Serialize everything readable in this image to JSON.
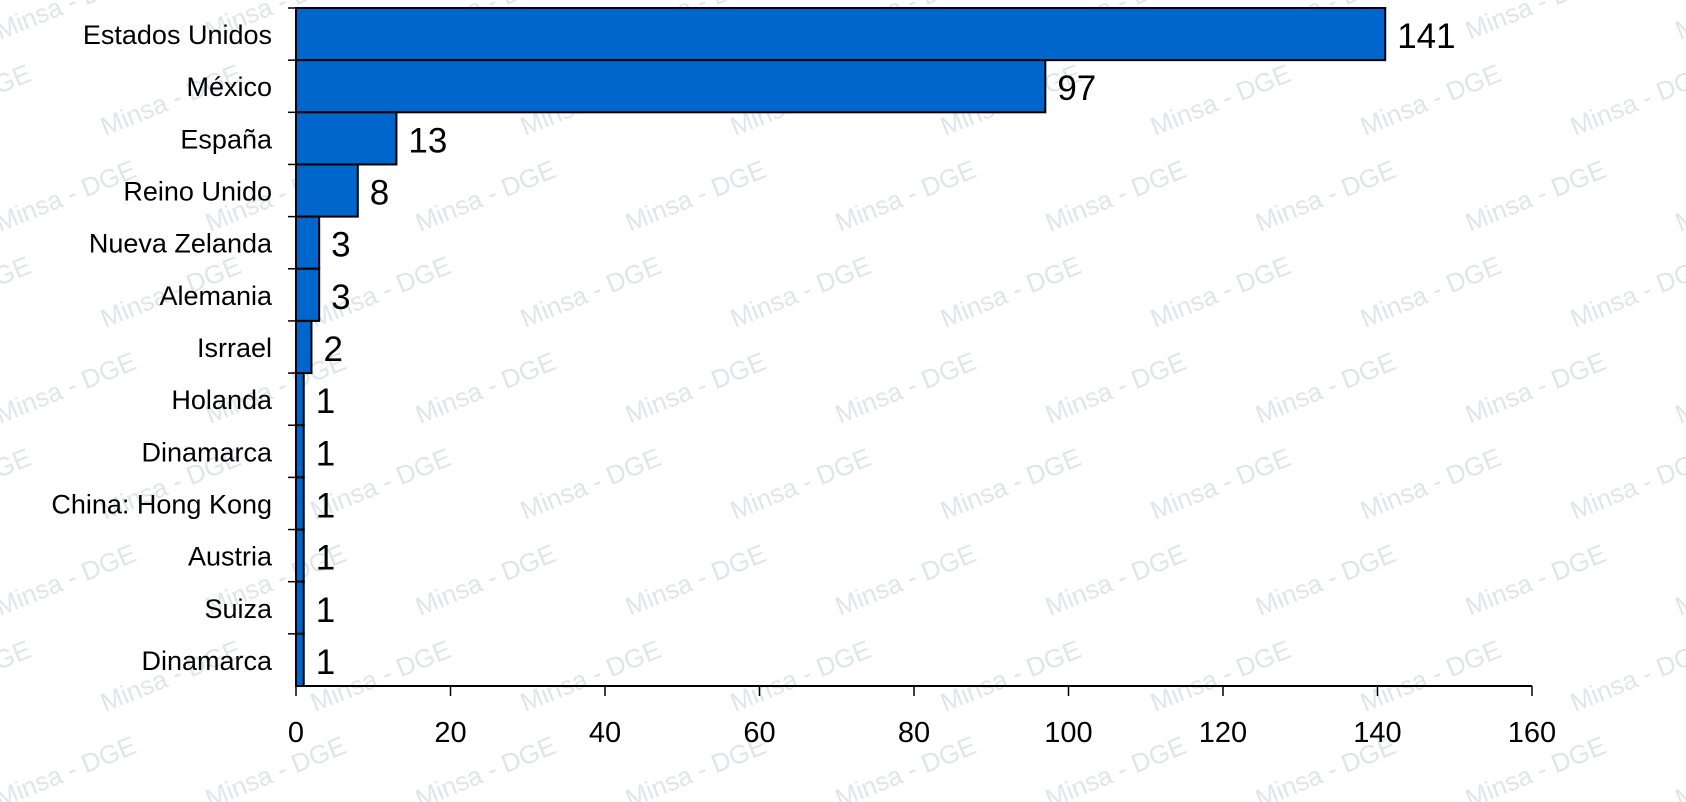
{
  "watermark": "Minsa - DGE",
  "colors": {
    "bar_fill": "#0066CC",
    "bar_stroke": "#000000",
    "axis": "#000000",
    "watermark": "#c9cfd9"
  },
  "chart_data": {
    "type": "bar",
    "orientation": "horizontal",
    "categories": [
      "Estados Unidos",
      "México",
      "España",
      "Reino Unido",
      "Nueva Zelanda",
      "Alemania",
      "Isrrael",
      "Holanda",
      "Dinamarca",
      "China: Hong Kong",
      "Austria",
      "Suiza",
      "Dinamarca"
    ],
    "values": [
      141,
      97,
      13,
      8,
      3,
      3,
      2,
      1,
      1,
      1,
      1,
      1,
      1
    ],
    "data_labels": [
      "141",
      "97",
      "13",
      "8",
      "3",
      "3",
      "2",
      "1",
      "1",
      "1",
      "1",
      "1",
      "1"
    ],
    "xlim": [
      0,
      160
    ],
    "xticks": [
      0,
      20,
      40,
      60,
      80,
      100,
      120,
      140,
      160
    ],
    "xtick_labels": [
      "0",
      "20",
      "40",
      "60",
      "80",
      "100",
      "120",
      "140",
      "160"
    ],
    "grid": false,
    "legend": "none"
  }
}
